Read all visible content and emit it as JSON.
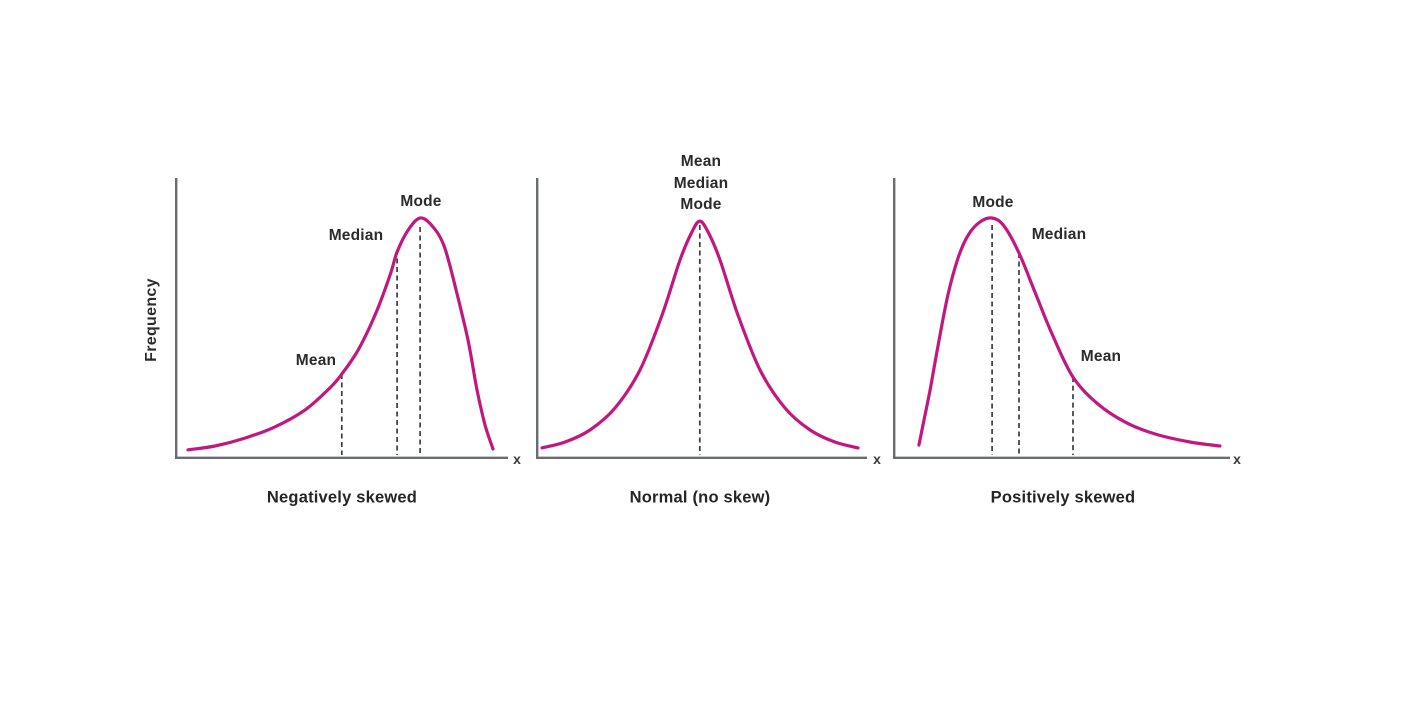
{
  "colors": {
    "curve": "#c2187e",
    "axis": "#6a6d70",
    "dash": "#3c3c3c",
    "text": "#2b2b2b",
    "background": "#ffffff"
  },
  "y_axis_label": "Frequency",
  "chart_data": [
    {
      "type": "line",
      "title": "Negatively skewed",
      "skew": "negative",
      "xlabel": "x",
      "ylabel": "Frequency",
      "grid": false,
      "curve": [
        [
          0.039,
          0.971
        ],
        [
          0.12,
          0.957
        ],
        [
          0.21,
          0.929
        ],
        [
          0.3,
          0.889
        ],
        [
          0.39,
          0.829
        ],
        [
          0.465,
          0.75
        ],
        [
          0.501,
          0.7
        ],
        [
          0.55,
          0.614
        ],
        [
          0.601,
          0.489
        ],
        [
          0.646,
          0.346
        ],
        [
          0.667,
          0.264
        ],
        [
          0.7,
          0.186
        ],
        [
          0.736,
          0.143
        ],
        [
          0.772,
          0.171
        ],
        [
          0.808,
          0.243
        ],
        [
          0.844,
          0.4
        ],
        [
          0.88,
          0.579
        ],
        [
          0.907,
          0.757
        ],
        [
          0.931,
          0.882
        ],
        [
          0.955,
          0.968
        ]
      ],
      "markers": [
        {
          "label": "Mean",
          "x": 0.501,
          "line_top": 0.7,
          "order": "Mean < Median < Mode"
        },
        {
          "label": "Median",
          "x": 0.667,
          "line_top": 0.257
        },
        {
          "label": "Mode",
          "x": 0.736,
          "line_top": 0.175
        }
      ]
    },
    {
      "type": "line",
      "title": "Normal (no skew)",
      "skew": "none",
      "xlabel": "x",
      "grid": false,
      "curve": [
        [
          0.018,
          0.964
        ],
        [
          0.088,
          0.943
        ],
        [
          0.163,
          0.9
        ],
        [
          0.239,
          0.821
        ],
        [
          0.314,
          0.686
        ],
        [
          0.381,
          0.489
        ],
        [
          0.435,
          0.293
        ],
        [
          0.471,
          0.193
        ],
        [
          0.495,
          0.154
        ],
        [
          0.52,
          0.193
        ],
        [
          0.556,
          0.293
        ],
        [
          0.61,
          0.489
        ],
        [
          0.677,
          0.686
        ],
        [
          0.752,
          0.821
        ],
        [
          0.828,
          0.9
        ],
        [
          0.903,
          0.943
        ],
        [
          0.973,
          0.964
        ]
      ],
      "peak_labels": [
        "Mean",
        "Median",
        "Mode"
      ],
      "markers": [
        {
          "label": "Mean = Median = Mode",
          "x": 0.495,
          "line_top": 0.168
        }
      ]
    },
    {
      "type": "line",
      "title": "Positively skewed",
      "skew": "positive",
      "xlabel": "x",
      "grid": false,
      "curve": [
        [
          0.077,
          0.954
        ],
        [
          0.092,
          0.864
        ],
        [
          0.11,
          0.757
        ],
        [
          0.134,
          0.596
        ],
        [
          0.163,
          0.418
        ],
        [
          0.193,
          0.286
        ],
        [
          0.223,
          0.204
        ],
        [
          0.258,
          0.157
        ],
        [
          0.294,
          0.143
        ],
        [
          0.329,
          0.171
        ],
        [
          0.374,
          0.268
        ],
        [
          0.421,
          0.407
        ],
        [
          0.472,
          0.557
        ],
        [
          0.534,
          0.711
        ],
        [
          0.608,
          0.807
        ],
        [
          0.688,
          0.871
        ],
        [
          0.777,
          0.914
        ],
        [
          0.881,
          0.943
        ],
        [
          0.97,
          0.957
        ]
      ],
      "markers": [
        {
          "label": "Mode",
          "x": 0.294,
          "line_top": 0.168,
          "order": "Mode < Median < Mean"
        },
        {
          "label": "Median",
          "x": 0.374,
          "line_top": 0.268
        },
        {
          "label": "Mean",
          "x": 0.534,
          "line_top": 0.711
        }
      ]
    }
  ]
}
